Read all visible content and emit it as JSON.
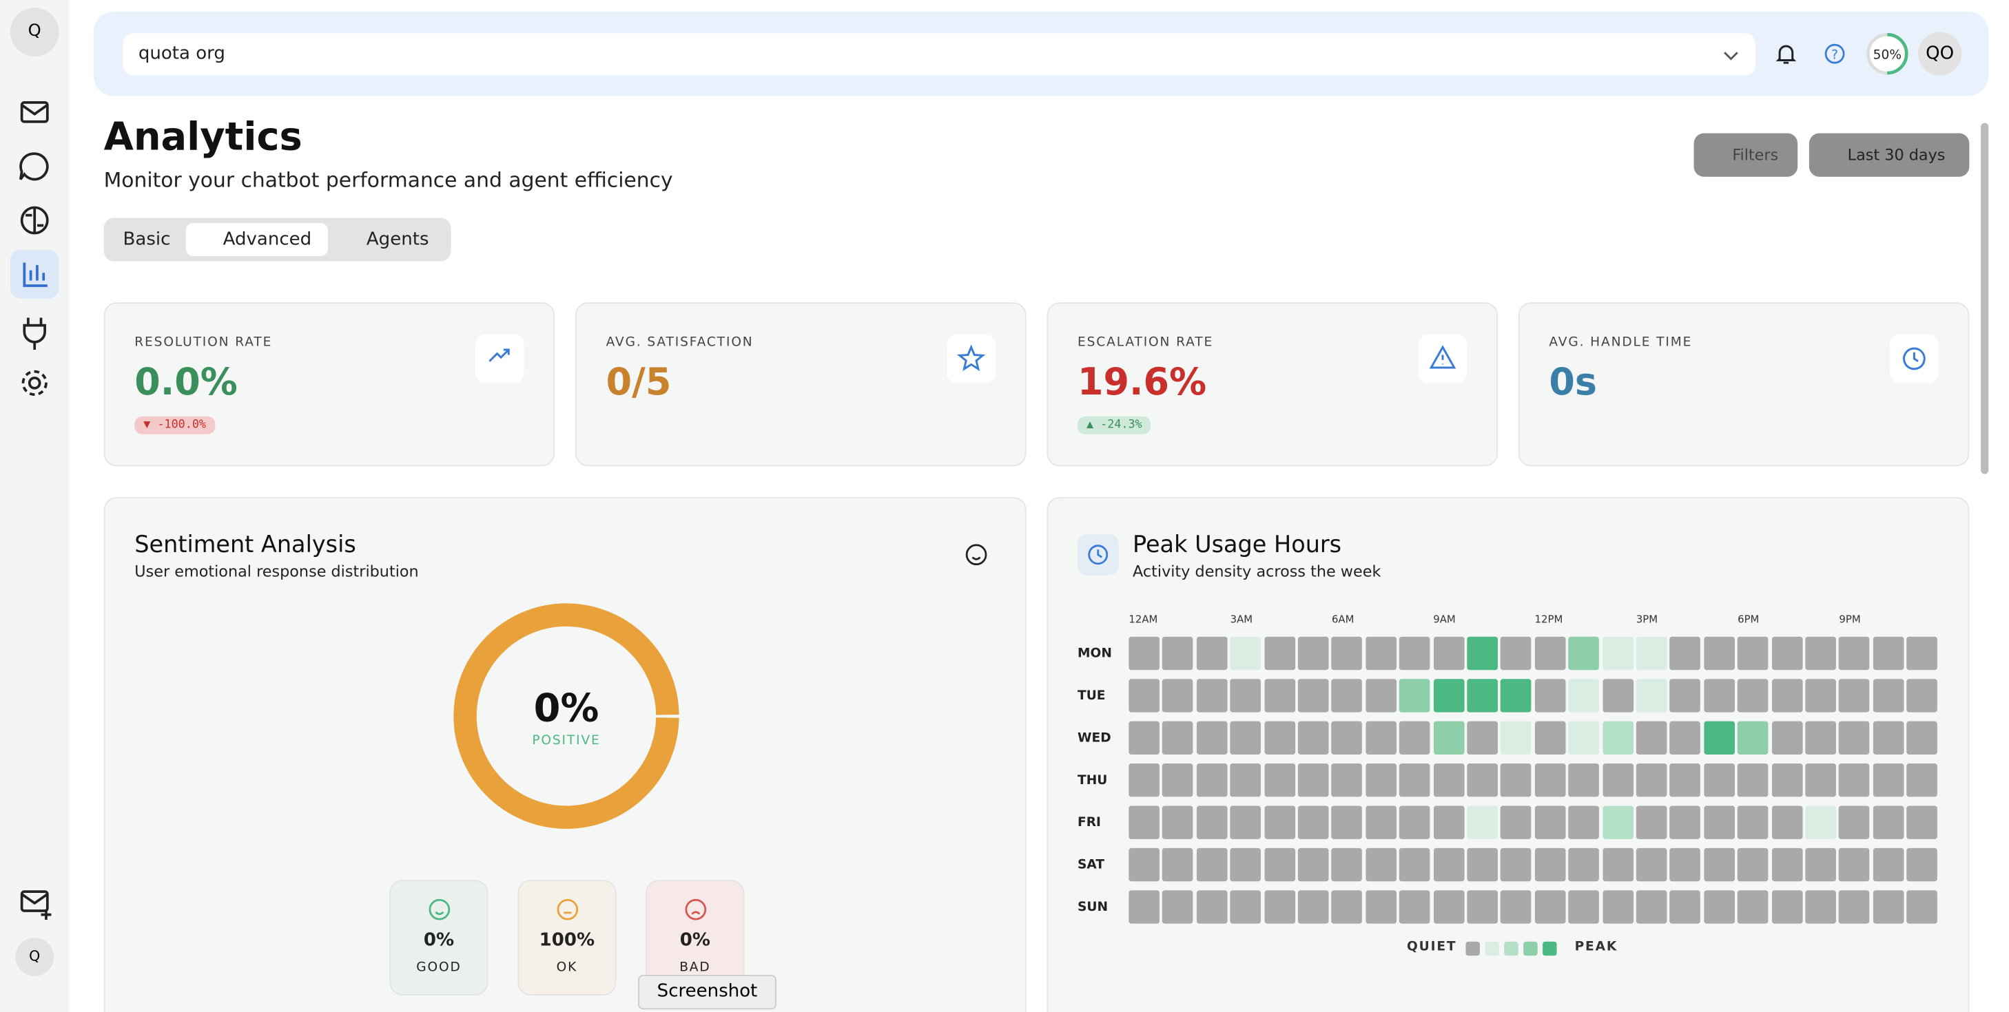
{
  "sidebar": {
    "logo": "Q",
    "footer_logo": "Q"
  },
  "header": {
    "org": "quota org",
    "progress": {
      "value": 50,
      "label": "50%"
    },
    "avatar": "QO"
  },
  "page": {
    "title": "Analytics",
    "subtitle": "Monitor your chatbot performance and agent efficiency",
    "filters": "Filters",
    "range": "Last 30 days"
  },
  "tabs": [
    "Basic",
    "Advanced",
    "Agents"
  ],
  "kpis": [
    {
      "label": "RESOLUTION RATE",
      "value": "0.0%",
      "change": "▼ -100.0%",
      "color": "#3a8f5c"
    },
    {
      "label": "AVG. SATISFACTION",
      "value": "0/5",
      "color": "#c8822c"
    },
    {
      "label": "ESCALATION RATE",
      "value": "19.6%",
      "change": "▲ -24.3%",
      "color": "#c9302c"
    },
    {
      "label": "AVG. HANDLE TIME",
      "value": "0s",
      "color": "#3b7fa8"
    }
  ],
  "sentiment": {
    "title": "Sentiment Analysis",
    "subtitle": "User emotional response distribution",
    "center_caption": "POSITIVE",
    "items": [
      {
        "label": "GOOD",
        "value": 0,
        "value_label": "0%",
        "color": "#4cb882"
      },
      {
        "label": "OK",
        "value": 100,
        "value_label": "100%",
        "color": "#e9a23b"
      },
      {
        "label": "BAD",
        "value": 0,
        "value_label": "0%",
        "color": "#d9534f"
      }
    ]
  },
  "peak": {
    "title": "Peak Usage Hours",
    "subtitle": "Activity density across the week",
    "hours": [
      "12AM",
      "3AM",
      "6AM",
      "9AM",
      "12PM",
      "3PM",
      "6PM",
      "9PM"
    ],
    "days": [
      "MON",
      "TUE",
      "WED",
      "THU",
      "FRI",
      "SAT",
      "SUN"
    ],
    "levels": [
      [
        0,
        0,
        0,
        1,
        0,
        0,
        0,
        0,
        0,
        0,
        4,
        0,
        0,
        3,
        1,
        1,
        0,
        0,
        0,
        0,
        0,
        0,
        0,
        0
      ],
      [
        0,
        0,
        0,
        0,
        0,
        0,
        0,
        0,
        3,
        4,
        4,
        4,
        0,
        1,
        0,
        1,
        0,
        0,
        0,
        0,
        0,
        0,
        0,
        0
      ],
      [
        0,
        0,
        0,
        0,
        0,
        0,
        0,
        0,
        0,
        3,
        0,
        1,
        0,
        1,
        2,
        0,
        0,
        4,
        3,
        0,
        0,
        0,
        0,
        0
      ],
      [
        0,
        0,
        0,
        0,
        0,
        0,
        0,
        0,
        0,
        0,
        0,
        0,
        0,
        0,
        0,
        0,
        0,
        0,
        0,
        0,
        0,
        0,
        0,
        0
      ],
      [
        0,
        0,
        0,
        0,
        0,
        0,
        0,
        0,
        0,
        0,
        1,
        0,
        0,
        0,
        2,
        0,
        0,
        0,
        0,
        0,
        1,
        0,
        0,
        0
      ],
      [
        0,
        0,
        0,
        0,
        0,
        0,
        0,
        0,
        0,
        0,
        0,
        0,
        0,
        0,
        0,
        0,
        0,
        0,
        0,
        0,
        0,
        0,
        0,
        0
      ],
      [
        0,
        0,
        0,
        0,
        0,
        0,
        0,
        0,
        0,
        0,
        0,
        0,
        0,
        0,
        0,
        0,
        0,
        0,
        0,
        0,
        0,
        0,
        0,
        0
      ]
    ],
    "colors": [
      "#a9a9a9",
      "#d9ede3",
      "#b5e0c8",
      "#8ccfa8",
      "#4cb882"
    ],
    "legend": [
      "QUIET",
      "PEAK"
    ]
  },
  "tooltip": "Screenshot"
}
